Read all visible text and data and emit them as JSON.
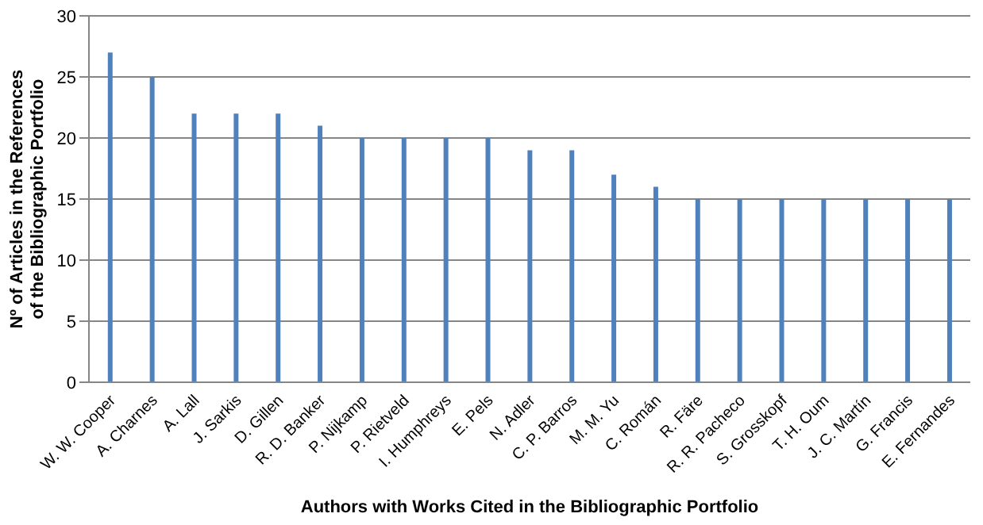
{
  "chart_data": {
    "type": "bar",
    "xlabel": "Authors with Works Cited in the Bibliographic Portfolio",
    "ylabel": "Nº of Articles in the References of the Bibliographic Portfolio",
    "categories": [
      "W. W. Cooper",
      "A. Charnes",
      "A. Lall",
      "J. Sarkis",
      "D. Gillen",
      "R. D. Banker",
      "P. Nijkamp",
      "P. Rietveld",
      "I. Humphreys",
      "E. Pels",
      "N. Adler",
      "C. P. Barros",
      "M. M. Yu",
      "C. Román",
      "R. Färe",
      "R. R. Pacheco",
      "S. Grosskopf",
      "T. H. Oum",
      "J. C. Martín",
      "G. Francis",
      "E. Fernandes"
    ],
    "values": [
      27,
      25,
      22,
      22,
      22,
      21,
      20,
      20,
      20,
      20,
      19,
      19,
      17,
      16,
      15,
      15,
      15,
      15,
      15,
      15,
      15
    ],
    "color": "#4f81bd",
    "ylim": [
      0,
      30
    ],
    "yticks": [
      0,
      5,
      10,
      15,
      20,
      25,
      30
    ],
    "grid": "y",
    "legend": false
  }
}
